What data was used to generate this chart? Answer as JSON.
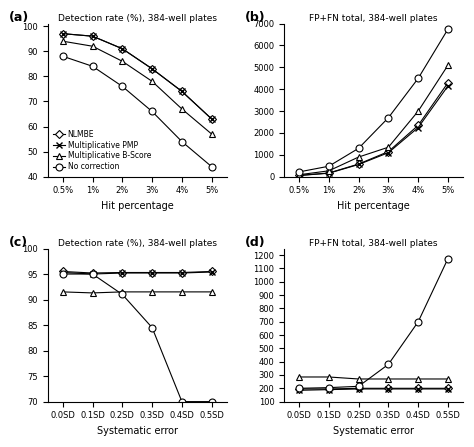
{
  "subplot_a": {
    "title": "Detection rate (%), 384-well plates",
    "xlabel": "Hit percentage",
    "xtick_labels": [
      "0.5%",
      "1%",
      "2%",
      "3%",
      "4%",
      "5%"
    ],
    "ylim": [
      40,
      101
    ],
    "yticks": [
      40,
      50,
      60,
      70,
      80,
      90,
      100
    ],
    "NLMBE": [
      97,
      96,
      91,
      83,
      74,
      63
    ],
    "PMP": [
      97,
      96,
      91,
      83,
      74,
      63
    ],
    "BScore": [
      94,
      92,
      86,
      78,
      67,
      57
    ],
    "NoCorr": [
      88,
      84,
      76,
      66,
      54,
      44
    ]
  },
  "subplot_b": {
    "title": "FP+FN total, 384-well plates",
    "xlabel": "Hit percentage",
    "xtick_labels": [
      "0.5%",
      "1%",
      "2%",
      "3%",
      "4%",
      "5%"
    ],
    "ylim": [
      0,
      7000
    ],
    "yticks": [
      0,
      1000,
      2000,
      3000,
      4000,
      5000,
      6000,
      7000
    ],
    "NLMBE": [
      60,
      170,
      580,
      1150,
      2350,
      4300
    ],
    "PMP": [
      55,
      160,
      560,
      1100,
      2250,
      4150
    ],
    "BScore": [
      90,
      270,
      900,
      1350,
      3000,
      5100
    ],
    "NoCorr": [
      220,
      480,
      1300,
      2700,
      4500,
      6750
    ]
  },
  "subplot_c": {
    "title": "Detection rate (%), 384-well plates",
    "xlabel": "Systematic error",
    "xtick_labels": [
      "0.0SD",
      "0.1SD",
      "0.2SD",
      "0.3SD",
      "0.4SD",
      "0.5SD"
    ],
    "ylim": [
      70,
      100
    ],
    "yticks": [
      70,
      75,
      80,
      85,
      90,
      95,
      100
    ],
    "NLMBE": [
      95.5,
      95.2,
      95.3,
      95.3,
      95.3,
      95.5
    ],
    "PMP": [
      95.3,
      95.0,
      95.2,
      95.2,
      95.2,
      95.4
    ],
    "BScore": [
      91.5,
      91.3,
      91.5,
      91.5,
      91.5,
      91.5
    ],
    "NoCorr": [
      95.0,
      95.0,
      91.0,
      84.5,
      70.0,
      70.0
    ]
  },
  "subplot_d": {
    "title": "FP+FN total, 384-well plates",
    "xlabel": "Systematic error",
    "xtick_labels": [
      "0.0SD",
      "0.1SD",
      "0.2SD",
      "0.3SD",
      "0.4SD",
      "0.5SD"
    ],
    "ylim": [
      100,
      1250
    ],
    "yticks": [
      100,
      200,
      300,
      400,
      500,
      600,
      700,
      800,
      900,
      1000,
      1100,
      1200
    ],
    "NLMBE": [
      195,
      195,
      200,
      200,
      200,
      200
    ],
    "PMP": [
      185,
      190,
      195,
      195,
      195,
      195
    ],
    "BScore": [
      285,
      285,
      270,
      270,
      270,
      270
    ],
    "NoCorr": [
      200,
      205,
      215,
      380,
      700,
      1175
    ]
  }
}
